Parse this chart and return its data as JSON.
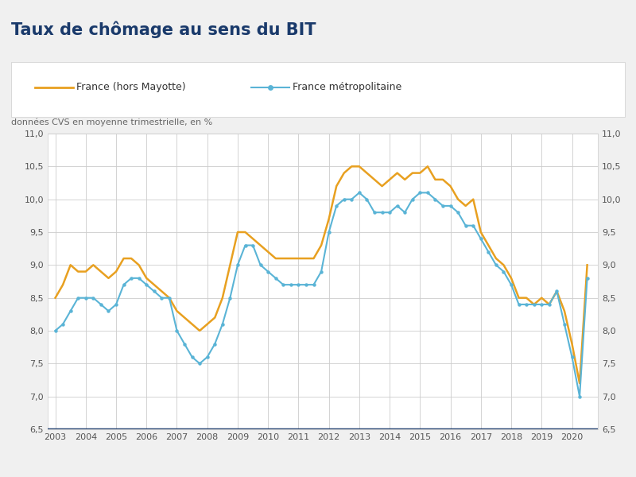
{
  "title": "Taux de chômage au sens du BIT",
  "subtitle": "données CVS en moyenne trimestrielle, en %",
  "legend1": "France (hors Mayotte)",
  "legend2": "France métropolitaine",
  "background_color": "#f0f0f0",
  "plot_background": "#ffffff",
  "title_color": "#1a3a6b",
  "subtitle_color": "#666666",
  "line1_color": "#e8a020",
  "line2_color": "#5ab4d6",
  "bottom_line_color": "#1a3a6b",
  "grid_color": "#cccccc",
  "tick_color": "#555555",
  "ylim": [
    6.5,
    11.0
  ],
  "yticks": [
    6.5,
    7.0,
    7.5,
    8.0,
    8.5,
    9.0,
    9.5,
    10.0,
    10.5,
    11.0
  ],
  "xlim_left": 2002.75,
  "xlim_right": 2020.85,
  "france_hors_mayotte_x": [
    2003.0,
    2003.25,
    2003.5,
    2003.75,
    2004.0,
    2004.25,
    2004.5,
    2004.75,
    2005.0,
    2005.25,
    2005.5,
    2005.75,
    2006.0,
    2006.25,
    2006.5,
    2006.75,
    2007.0,
    2007.25,
    2007.5,
    2007.75,
    2008.0,
    2008.25,
    2008.5,
    2008.75,
    2009.0,
    2009.25,
    2009.5,
    2009.75,
    2010.0,
    2010.25,
    2010.5,
    2010.75,
    2011.0,
    2011.25,
    2011.5,
    2011.75,
    2012.0,
    2012.25,
    2012.5,
    2012.75,
    2013.0,
    2013.25,
    2013.5,
    2013.75,
    2014.0,
    2014.25,
    2014.5,
    2014.75,
    2015.0,
    2015.25,
    2015.5,
    2015.75,
    2016.0,
    2016.25,
    2016.5,
    2016.75,
    2017.0,
    2017.25,
    2017.5,
    2017.75,
    2018.0,
    2018.25,
    2018.5,
    2018.75,
    2019.0,
    2019.25,
    2019.5,
    2019.75,
    2020.0,
    2020.25,
    2020.5
  ],
  "france_hors_mayotte_y": [
    8.5,
    8.7,
    9.0,
    8.9,
    8.9,
    9.0,
    8.9,
    8.8,
    8.9,
    9.1,
    9.1,
    9.0,
    8.8,
    8.7,
    8.6,
    8.5,
    8.3,
    8.2,
    8.1,
    8.0,
    8.1,
    8.2,
    8.5,
    9.0,
    9.5,
    9.5,
    9.4,
    9.3,
    9.2,
    9.1,
    9.1,
    9.1,
    9.1,
    9.1,
    9.1,
    9.3,
    9.7,
    10.2,
    10.4,
    10.5,
    10.5,
    10.4,
    10.3,
    10.2,
    10.3,
    10.4,
    10.3,
    10.4,
    10.4,
    10.5,
    10.3,
    10.3,
    10.2,
    10.0,
    9.9,
    10.0,
    9.5,
    9.3,
    9.1,
    9.0,
    8.8,
    8.5,
    8.5,
    8.4,
    8.5,
    8.4,
    8.6,
    8.3,
    7.8,
    7.2,
    9.0
  ],
  "france_metro_x": [
    2003.0,
    2003.25,
    2003.5,
    2003.75,
    2004.0,
    2004.25,
    2004.5,
    2004.75,
    2005.0,
    2005.25,
    2005.5,
    2005.75,
    2006.0,
    2006.25,
    2006.5,
    2006.75,
    2007.0,
    2007.25,
    2007.5,
    2007.75,
    2008.0,
    2008.25,
    2008.5,
    2008.75,
    2009.0,
    2009.25,
    2009.5,
    2009.75,
    2010.0,
    2010.25,
    2010.5,
    2010.75,
    2011.0,
    2011.25,
    2011.5,
    2011.75,
    2012.0,
    2012.25,
    2012.5,
    2012.75,
    2013.0,
    2013.25,
    2013.5,
    2013.75,
    2014.0,
    2014.25,
    2014.5,
    2014.75,
    2015.0,
    2015.25,
    2015.5,
    2015.75,
    2016.0,
    2016.25,
    2016.5,
    2016.75,
    2017.0,
    2017.25,
    2017.5,
    2017.75,
    2018.0,
    2018.25,
    2018.5,
    2018.75,
    2019.0,
    2019.25,
    2019.5,
    2019.75,
    2020.0,
    2020.25,
    2020.5
  ],
  "france_metro_y": [
    8.0,
    8.1,
    8.3,
    8.5,
    8.5,
    8.5,
    8.4,
    8.3,
    8.4,
    8.7,
    8.8,
    8.8,
    8.7,
    8.6,
    8.5,
    8.5,
    8.0,
    7.8,
    7.6,
    7.5,
    7.6,
    7.8,
    8.1,
    8.5,
    9.0,
    9.3,
    9.3,
    9.0,
    8.9,
    8.8,
    8.7,
    8.7,
    8.7,
    8.7,
    8.7,
    8.9,
    9.5,
    9.9,
    10.0,
    10.0,
    10.1,
    10.0,
    9.8,
    9.8,
    9.8,
    9.9,
    9.8,
    10.0,
    10.1,
    10.1,
    10.0,
    9.9,
    9.9,
    9.8,
    9.6,
    9.6,
    9.4,
    9.2,
    9.0,
    8.9,
    8.7,
    8.4,
    8.4,
    8.4,
    8.4,
    8.4,
    8.6,
    8.1,
    7.6,
    7.0,
    8.8
  ]
}
